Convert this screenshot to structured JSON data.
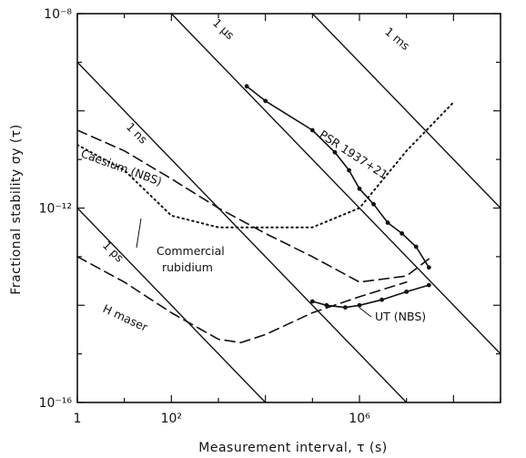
{
  "chart_data": {
    "type": "line",
    "title": "",
    "xlabel": "Measurement interval, τ (s)",
    "ylabel": "Fractional stability σy (τ)",
    "x_scale": "log10",
    "y_scale": "log10",
    "xlim": [
      1,
      1000000000.0
    ],
    "ylim": [
      1e-16,
      1e-08
    ],
    "grid": false,
    "x_ticks": [
      {
        "value": 1,
        "label": "1"
      },
      {
        "value": 100,
        "label": "10²"
      },
      {
        "value": 1000000,
        "label": "10⁶"
      }
    ],
    "y_ticks": [
      {
        "value": 1e-08,
        "label": "10⁻⁸"
      },
      {
        "value": 1e-12,
        "label": "10⁻¹²"
      },
      {
        "value": 1e-16,
        "label": "10⁻¹⁶"
      }
    ],
    "reference_lines": [
      {
        "label": "1 ps",
        "x": [
          1,
          10000.0
        ],
        "y": [
          1e-12,
          1e-16
        ]
      },
      {
        "label": "1 ns",
        "x": [
          1,
          10000000.0
        ],
        "y": [
          1e-09,
          1e-16
        ]
      },
      {
        "label": "1 µs",
        "x": [
          100,
          1000000000.0
        ],
        "y": [
          1e-08,
          1e-15
        ]
      },
      {
        "label": "1 ms",
        "x": [
          100000,
          1000000000.0
        ],
        "y": [
          1e-08,
          1e-12
        ]
      }
    ],
    "series": [
      {
        "name": "PSR 1937+21",
        "style": "solid-markers",
        "x": [
          4000,
          10000,
          100000,
          300000,
          600000,
          1000000,
          2000000,
          4000000,
          8000000,
          16000000,
          30000000
        ],
        "y": [
          3.2e-10,
          1.6e-10,
          4e-11,
          1.4e-11,
          6e-12,
          2.5e-12,
          1.2e-12,
          5e-13,
          3e-13,
          1.6e-13,
          6e-14
        ]
      },
      {
        "name": "UT (NBS)",
        "style": "solid-markers",
        "x": [
          100000,
          200000,
          500000,
          1000000,
          3000000,
          10000000,
          30000000
        ],
        "y": [
          1.2e-14,
          1e-14,
          9e-15,
          1e-14,
          1.3e-14,
          1.9e-14,
          2.6e-14
        ]
      },
      {
        "name": "Caesium (NBS)",
        "style": "dashed",
        "x": [
          1,
          10,
          100,
          1000,
          10000,
          100000,
          1000000,
          10000000,
          30000000
        ],
        "y": [
          4e-11,
          1.5e-11,
          4e-12,
          1e-12,
          3e-13,
          1e-13,
          3e-14,
          4e-14,
          9e-14
        ]
      },
      {
        "name": "Commercial rubidium",
        "style": "dotted",
        "x": [
          1,
          10,
          100,
          1000,
          10000,
          100000,
          1000000,
          10000000,
          100000000
        ],
        "y": [
          2e-11,
          6e-12,
          7e-13,
          4e-13,
          4e-13,
          4e-13,
          1e-12,
          1.5e-11,
          1.5e-10
        ]
      },
      {
        "name": "H maser",
        "style": "dashed",
        "x": [
          1,
          10,
          100,
          1000,
          3000,
          10000,
          100000,
          1000000,
          10000000
        ],
        "y": [
          1e-13,
          3e-14,
          7e-15,
          2e-15,
          1.7e-15,
          2.5e-15,
          7e-15,
          1.5e-14,
          3e-14
        ]
      }
    ],
    "annotations": [
      {
        "text": "1 ps"
      },
      {
        "text": "1 ns"
      },
      {
        "text": "1 µs"
      },
      {
        "text": "1 ms"
      },
      {
        "text": "PSR 1937+21"
      },
      {
        "text": "Caesium (NBS)"
      },
      {
        "text": "Commercial"
      },
      {
        "text": "rubidium"
      },
      {
        "text": "H maser"
      },
      {
        "text": "UT (NBS)"
      }
    ]
  }
}
